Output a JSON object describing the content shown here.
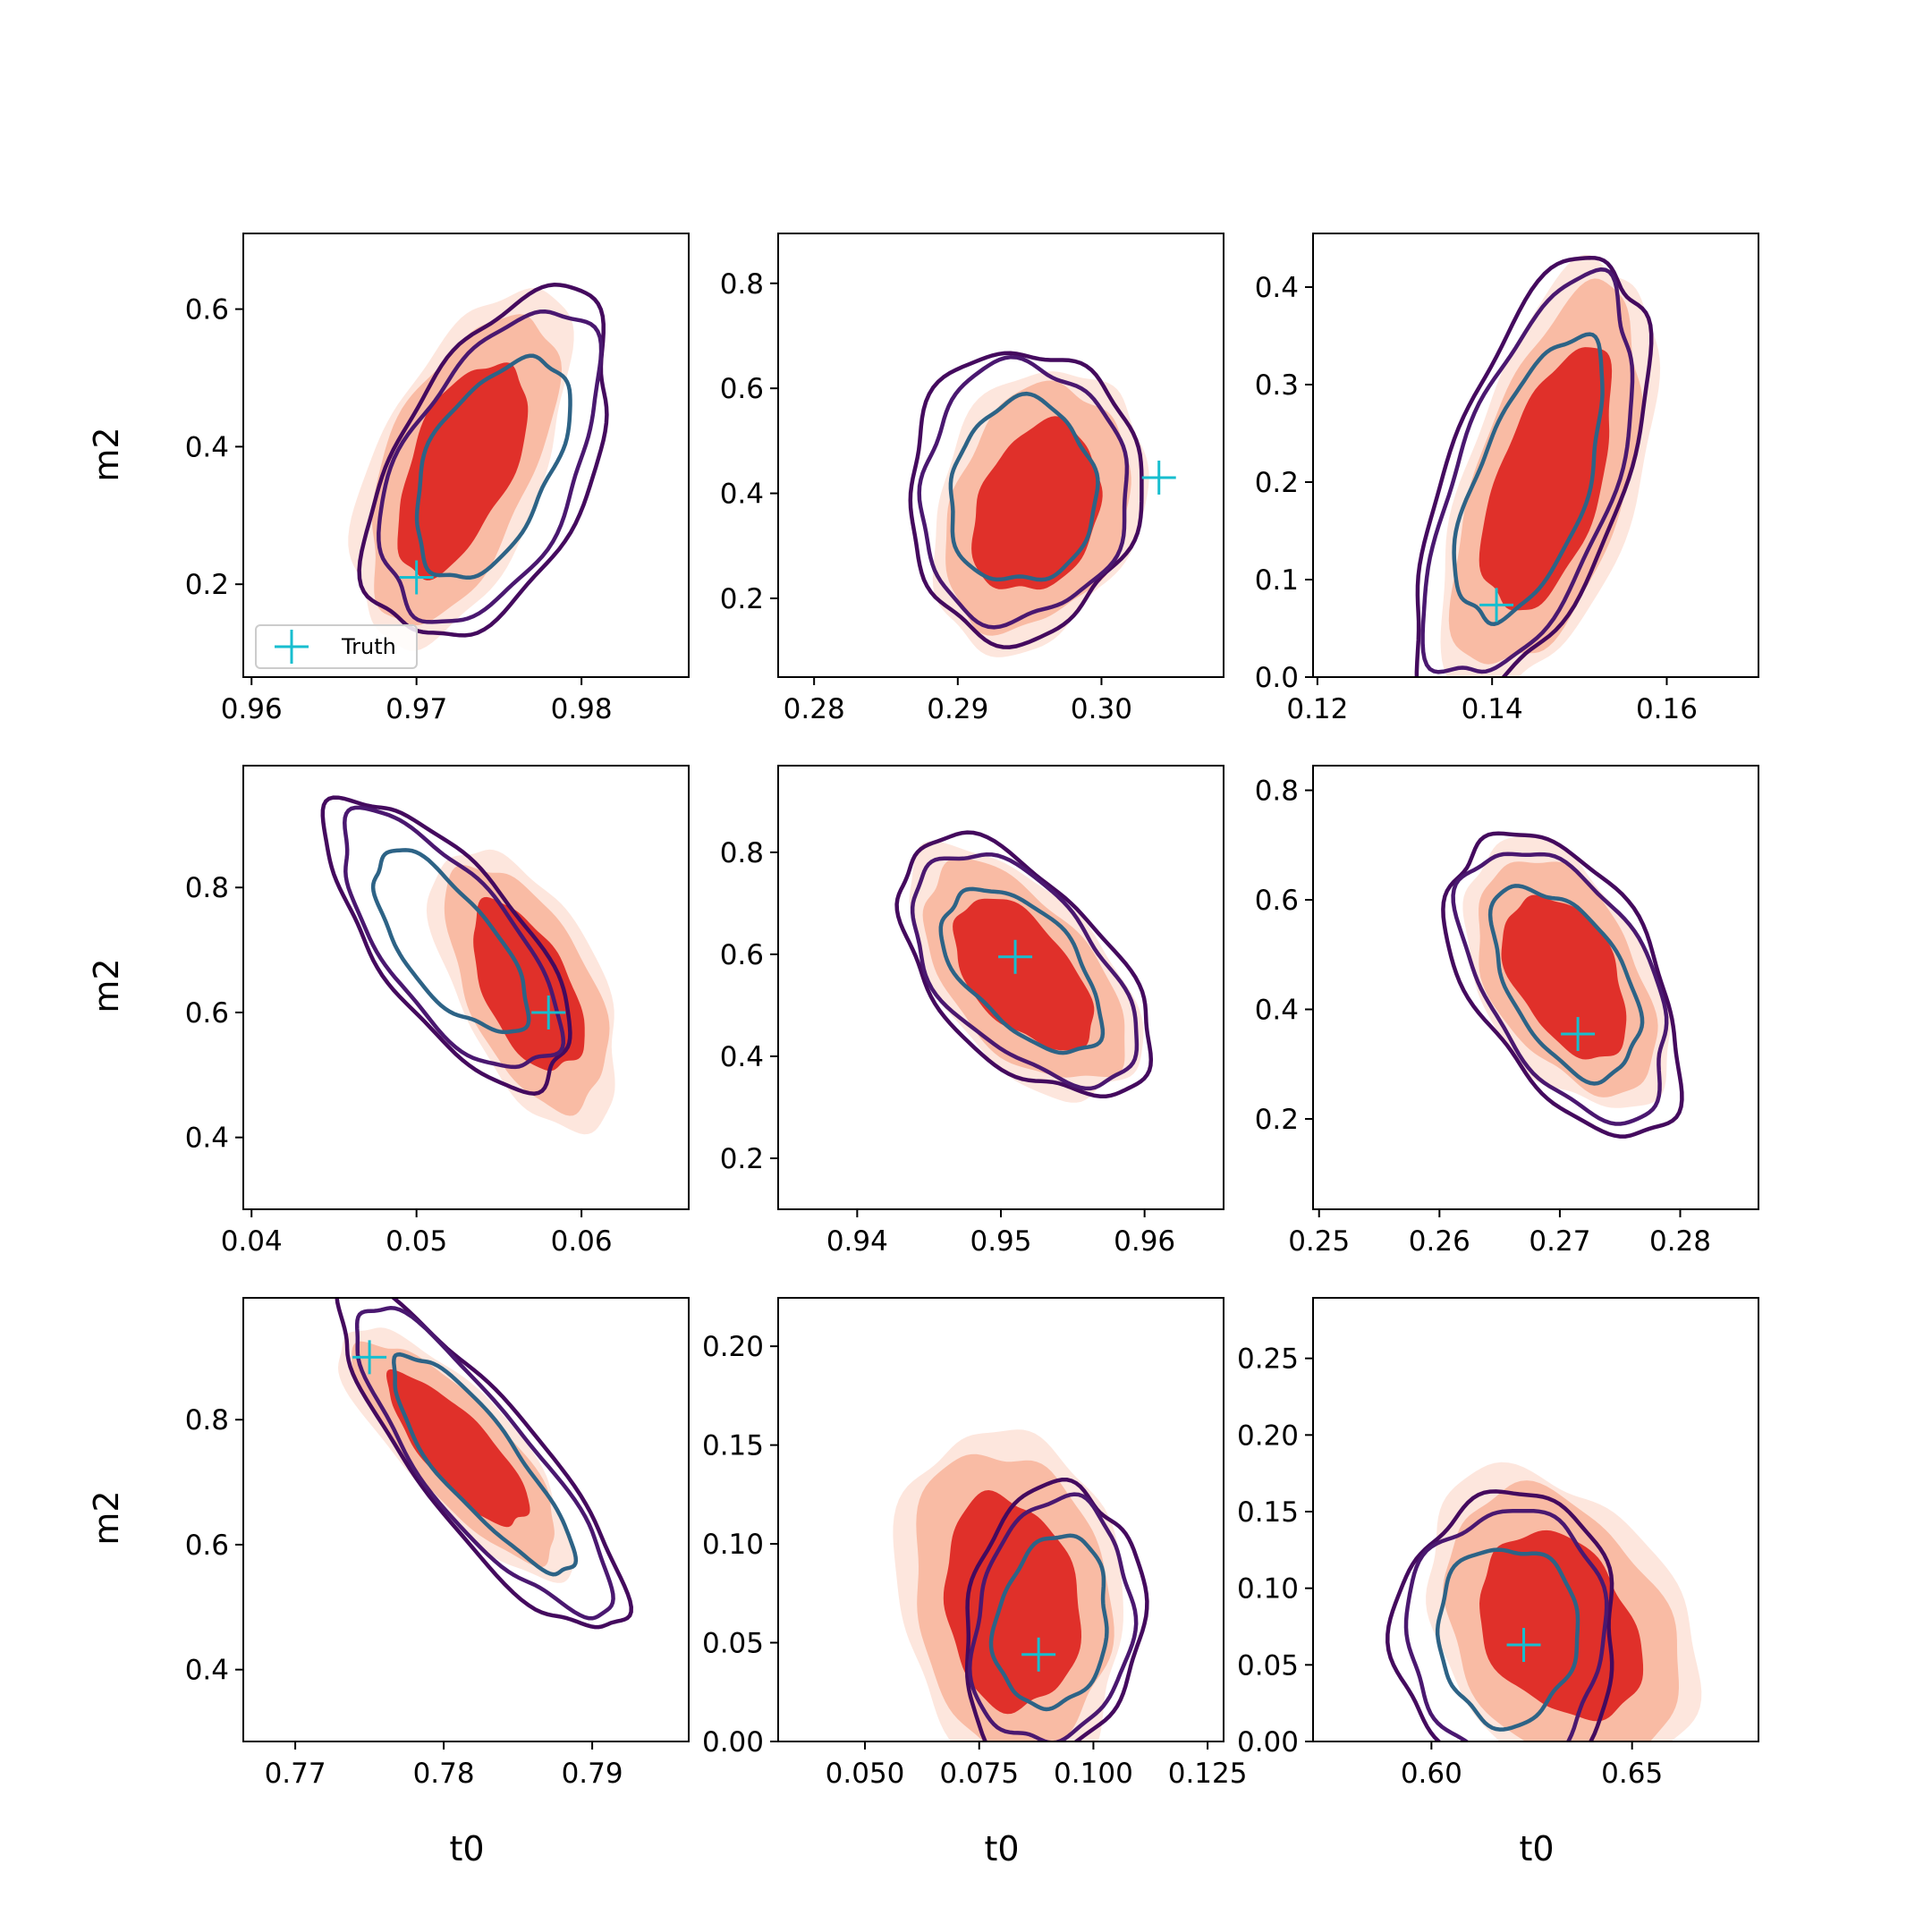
{
  "figure": {
    "xlabel": "t0",
    "ylabel": "m2",
    "legend_label": "Truth",
    "colors": {
      "fill_inner": "#e0302a",
      "fill_mid": "#f9bba4",
      "fill_outer": "#fde6dd",
      "contour_outer": "#440a5e",
      "contour_mid": "#4a1870",
      "contour_inner": "#2d6386",
      "truth_marker": "#17becf"
    }
  },
  "chart_data": [
    {
      "type": "contour",
      "row": 0,
      "col": 0,
      "xlim": [
        0.9595,
        0.9865
      ],
      "ylim": [
        0.065,
        0.71
      ],
      "xticks": [
        "0.96",
        "0.97",
        "0.98"
      ],
      "yticks": [
        "0.2",
        "0.4",
        "0.6"
      ],
      "truth": [
        0.97,
        0.21
      ],
      "legend": "lower-left",
      "fill_center": [
        0.9727,
        0.37
      ],
      "fill_sd": [
        0.0029,
        0.115
      ],
      "fill_rho": 0.55,
      "contour_center": [
        0.9745,
        0.37
      ],
      "contour_sd": [
        0.0032,
        0.11
      ],
      "contour_rho": 0.5
    },
    {
      "type": "contour",
      "row": 0,
      "col": 1,
      "xlim": [
        0.2775,
        0.3085
      ],
      "ylim": [
        0.05,
        0.895
      ],
      "xticks": [
        "0.28",
        "0.29",
        "0.30"
      ],
      "yticks": [
        "0.2",
        "0.4",
        "0.6",
        "0.8"
      ],
      "truth": [
        0.304,
        0.43
      ],
      "fill_center": [
        0.2955,
        0.37
      ],
      "fill_sd": [
        0.0033,
        0.12
      ],
      "fill_rho": 0.25,
      "contour_center": [
        0.2945,
        0.4
      ],
      "contour_sd": [
        0.0035,
        0.12
      ],
      "contour_rho": 0.05
    },
    {
      "type": "contour",
      "row": 0,
      "col": 2,
      "xlim": [
        0.1195,
        0.1705
      ],
      "ylim": [
        0.0,
        0.455
      ],
      "xticks": [
        "0.12",
        "0.14",
        "0.16"
      ],
      "yticks": [
        "0.0",
        "0.1",
        "0.2",
        "0.3",
        "0.4"
      ],
      "truth": [
        0.1405,
        0.074
      ],
      "fill_center": [
        0.1465,
        0.2
      ],
      "fill_sd": [
        0.0055,
        0.1
      ],
      "fill_rho": 0.55,
      "contour_center": [
        0.1445,
        0.2
      ],
      "contour_sd": [
        0.0058,
        0.1
      ],
      "contour_rho": 0.6
    },
    {
      "type": "contour",
      "row": 1,
      "col": 0,
      "xlim": [
        0.0395,
        0.0665
      ],
      "ylim": [
        0.285,
        0.995
      ],
      "xticks": [
        "0.04",
        "0.05",
        "0.06"
      ],
      "yticks": [
        "0.4",
        "0.6",
        "0.8"
      ],
      "truth": [
        0.058,
        0.6
      ],
      "fill_center": [
        0.0567,
        0.64
      ],
      "fill_sd": [
        0.0025,
        0.1
      ],
      "fill_rho": -0.55,
      "contour_center": [
        0.052,
        0.71
      ],
      "contour_sd": [
        0.0032,
        0.1
      ],
      "contour_rho": -0.7
    },
    {
      "type": "contour",
      "row": 1,
      "col": 1,
      "xlim": [
        0.9345,
        0.9655
      ],
      "ylim": [
        0.1,
        0.97
      ],
      "xticks": [
        "0.94",
        "0.95",
        "0.96"
      ],
      "yticks": [
        "0.2",
        "0.4",
        "0.6",
        "0.8"
      ],
      "truth": [
        0.951,
        0.595
      ],
      "fill_center": [
        0.9515,
        0.56
      ],
      "fill_sd": [
        0.0036,
        0.11
      ],
      "fill_rho": -0.55,
      "contour_center": [
        0.9515,
        0.57
      ],
      "contour_sd": [
        0.0038,
        0.11
      ],
      "contour_rho": -0.55
    },
    {
      "type": "contour",
      "row": 1,
      "col": 2,
      "xlim": [
        0.2495,
        0.2865
      ],
      "ylim": [
        0.035,
        0.845
      ],
      "xticks": [
        "0.25",
        "0.26",
        "0.27",
        "0.28"
      ],
      "yticks": [
        "0.2",
        "0.4",
        "0.6",
        "0.8"
      ],
      "truth": [
        0.2715,
        0.355
      ],
      "fill_center": [
        0.2705,
        0.46
      ],
      "fill_sd": [
        0.0038,
        0.11
      ],
      "fill_rho": -0.45,
      "contour_center": [
        0.2705,
        0.45
      ],
      "contour_sd": [
        0.0042,
        0.12
      ],
      "contour_rho": -0.5
    },
    {
      "type": "contour",
      "row": 2,
      "col": 0,
      "xlim": [
        0.7665,
        0.7965
      ],
      "ylim": [
        0.285,
        0.995
      ],
      "xticks": [
        "0.77",
        "0.78",
        "0.79"
      ],
      "yticks": [
        "0.4",
        "0.6",
        "0.8"
      ],
      "truth": [
        0.775,
        0.9
      ],
      "fill_center": [
        0.781,
        0.75
      ],
      "fill_sd": [
        0.0035,
        0.09
      ],
      "fill_rho": -0.8,
      "contour_center": [
        0.7825,
        0.73
      ],
      "contour_sd": [
        0.0042,
        0.12
      ],
      "contour_rho": -0.85
    },
    {
      "type": "contour",
      "row": 2,
      "col": 1,
      "xlim": [
        0.031,
        0.1285
      ],
      "ylim": [
        0.0,
        0.2245
      ],
      "xticks": [
        "0.050",
        "0.075",
        "0.100",
        "0.125"
      ],
      "yticks": [
        "0.00",
        "0.05",
        "0.10",
        "0.15",
        "0.20"
      ],
      "truth": [
        0.088,
        0.044
      ],
      "fill_center": [
        0.082,
        0.07
      ],
      "fill_sd": [
        0.011,
        0.04
      ],
      "fill_rho": -0.15,
      "contour_center": [
        0.091,
        0.06
      ],
      "contour_sd": [
        0.0085,
        0.03
      ],
      "contour_rho": 0.15
    },
    {
      "type": "contour",
      "row": 2,
      "col": 2,
      "xlim": [
        0.5705,
        0.6815
      ],
      "ylim": [
        0.0,
        0.2895
      ],
      "xticks": [
        "0.60",
        "0.65"
      ],
      "yticks": [
        "0.00",
        "0.05",
        "0.10",
        "0.15",
        "0.20",
        "0.25"
      ],
      "truth": [
        0.623,
        0.063
      ],
      "fill_center": [
        0.632,
        0.075
      ],
      "fill_sd": [
        0.015,
        0.045
      ],
      "fill_rho": -0.3,
      "contour_center": [
        0.619,
        0.07
      ],
      "contour_sd": [
        0.012,
        0.04
      ],
      "contour_rho": 0.0
    }
  ]
}
